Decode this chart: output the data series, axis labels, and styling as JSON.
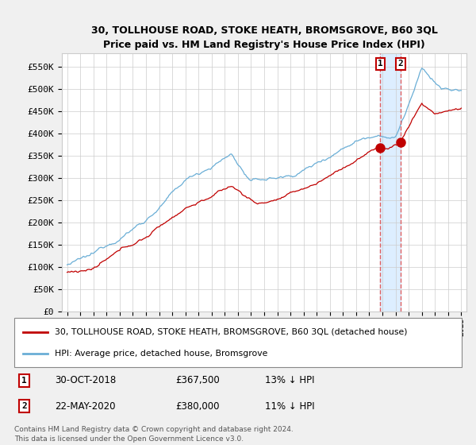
{
  "title": "30, TOLLHOUSE ROAD, STOKE HEATH, BROMSGROVE, B60 3QL",
  "subtitle": "Price paid vs. HM Land Registry's House Price Index (HPI)",
  "legend_line1": "30, TOLLHOUSE ROAD, STOKE HEATH, BROMSGROVE, B60 3QL (detached house)",
  "legend_line2": "HPI: Average price, detached house, Bromsgrove",
  "annotation1_date": "30-OCT-2018",
  "annotation1_price": "£367,500",
  "annotation1_hpi": "13% ↓ HPI",
  "annotation2_date": "22-MAY-2020",
  "annotation2_price": "£380,000",
  "annotation2_hpi": "11% ↓ HPI",
  "footnote": "Contains HM Land Registry data © Crown copyright and database right 2024.\nThis data is licensed under the Open Government Licence v3.0.",
  "vline1_x": 2018.83,
  "vline2_x": 2020.39,
  "marker1_red_x": 2018.83,
  "marker1_red_y": 367500,
  "marker2_red_x": 2020.39,
  "marker2_red_y": 380000,
  "hpi_color": "#6aaed6",
  "price_color": "#c00000",
  "vline_color": "#e06060",
  "shade_color": "#ddeeff",
  "ylim": [
    0,
    580000
  ],
  "yticks": [
    0,
    50000,
    100000,
    150000,
    200000,
    250000,
    300000,
    350000,
    400000,
    450000,
    500000,
    550000
  ],
  "xlim_left": 1994.6,
  "xlim_right": 2025.4,
  "bg_color": "#f0f0f0",
  "plot_bg_color": "#ffffff",
  "grid_color": "#cccccc"
}
